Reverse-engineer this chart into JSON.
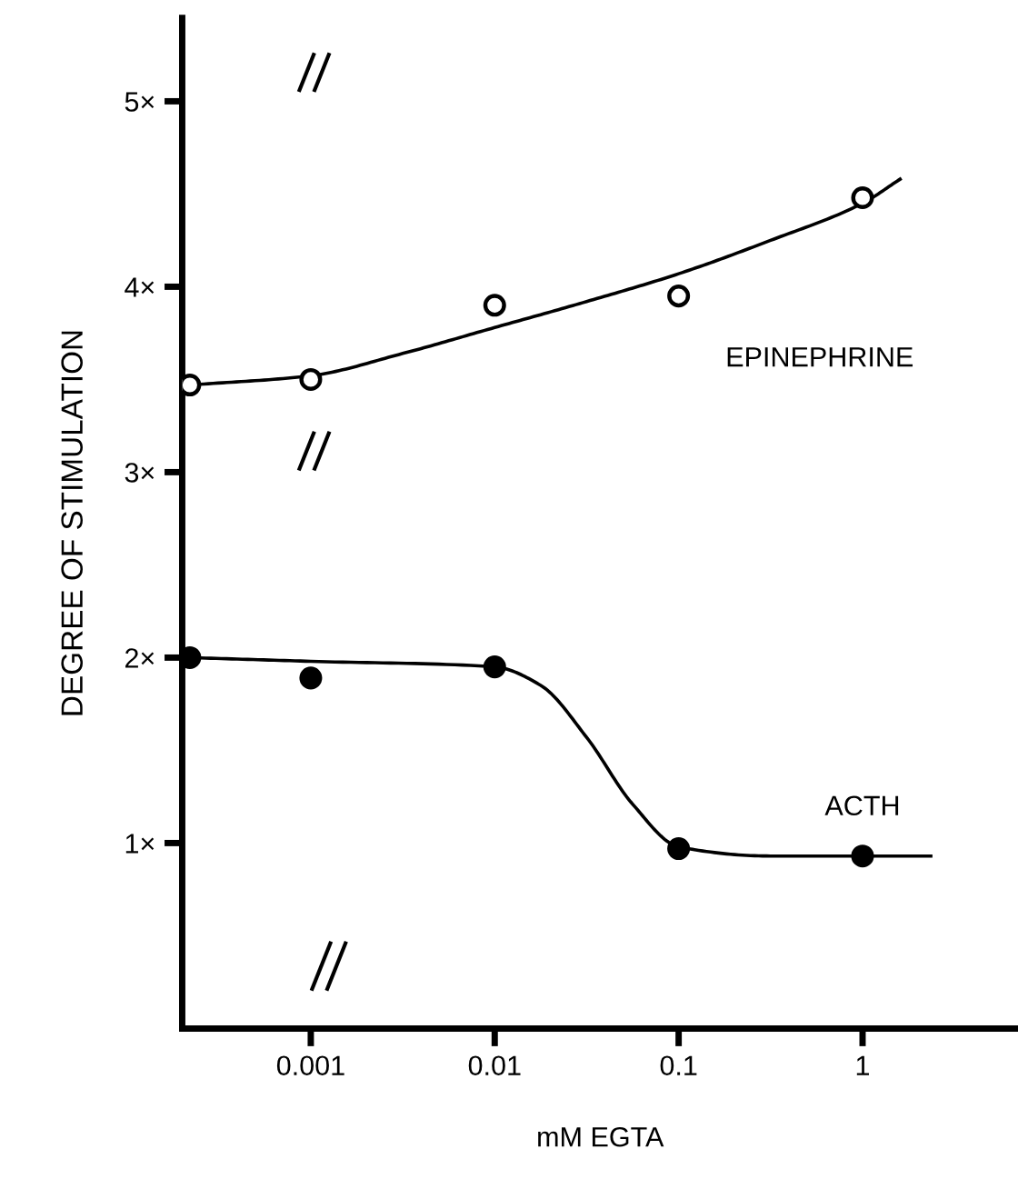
{
  "chart_data": {
    "type": "scatter",
    "xlabel": "mM EGTA",
    "ylabel": "DEGREE OF STIMULATION",
    "log": "x",
    "xlim": [
      0.0002,
      7
    ],
    "xticks": [
      0.001,
      0.01,
      0.1,
      1
    ],
    "ylim": [
      0,
      5.45
    ],
    "yticks": [
      {
        "value": 1,
        "label": "1×"
      },
      {
        "value": 2,
        "label": "2×"
      },
      {
        "value": 3,
        "label": "3×"
      },
      {
        "value": 4,
        "label": "4×"
      },
      {
        "value": 5,
        "label": "5×"
      }
    ],
    "grid": false,
    "legend": false,
    "series": [
      {
        "name": "EPINEPHRINE",
        "marker": "circle",
        "color": "#ffffff",
        "x": [
          0.00022,
          0.001,
          0.01,
          0.1,
          1
        ],
        "values": [
          3.47,
          3.5,
          3.9,
          3.95,
          4.48
        ]
      },
      {
        "name": "ACTH",
        "marker": "circle",
        "color": "#000000",
        "x": [
          0.00022,
          0.001,
          0.01,
          0.1,
          1
        ],
        "values": [
          2.0,
          1.89,
          1.95,
          0.97,
          0.93
        ]
      },
      {
        "type": "line",
        "color": "#000000",
        "line_style": "solid",
        "x": [
          0.00022,
          0.001,
          0.00316,
          0.01,
          0.0316,
          0.1,
          0.316,
          1,
          1.6
        ],
        "values": [
          3.47,
          3.52,
          3.64,
          3.78,
          3.92,
          4.07,
          4.25,
          4.45,
          4.58
        ]
      },
      {
        "type": "line",
        "color": "#000000",
        "line_style": "solid",
        "x": [
          0.00022,
          0.001,
          0.01,
          0.0178,
          0.0316,
          0.0562,
          0.1,
          0.316,
          1,
          2.35
        ],
        "values": [
          2.0,
          1.98,
          1.95,
          1.85,
          1.57,
          1.21,
          0.98,
          0.93,
          0.93,
          0.93
        ]
      }
    ]
  }
}
